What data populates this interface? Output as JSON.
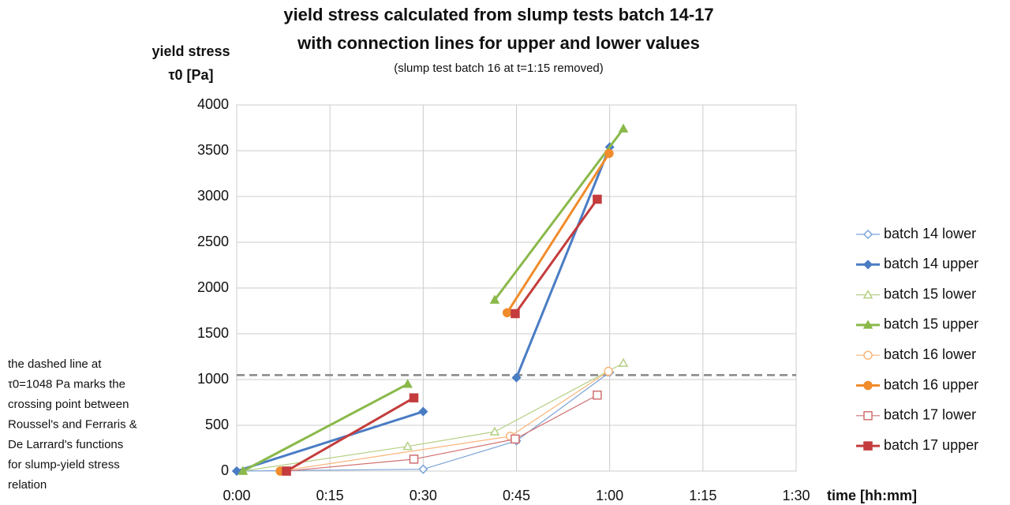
{
  "chart_data": {
    "type": "line",
    "title": [
      "yield stress calculated from slump tests batch 14-17",
      "with connection lines for upper and lower values"
    ],
    "subtitle": "(slump test batch 16 at t=1:15 removed)",
    "y_label": [
      "yield stress",
      "τ0 [Pa]"
    ],
    "x_label": "time [hh:mm]",
    "xlim": [
      0,
      90
    ],
    "xticks": [
      {
        "value": 0,
        "label": "0:00"
      },
      {
        "value": 15,
        "label": "0:15"
      },
      {
        "value": 30,
        "label": "0:30"
      },
      {
        "value": 45,
        "label": "0:45"
      },
      {
        "value": 60,
        "label": "1:00"
      },
      {
        "value": 75,
        "label": "1:15"
      },
      {
        "value": 90,
        "label": "1:30"
      }
    ],
    "ylim": [
      0,
      4000
    ],
    "yticks": [
      0,
      500,
      1000,
      1500,
      2000,
      2500,
      3000,
      3500,
      4000
    ],
    "grid": true,
    "legend": "right",
    "reference_line": {
      "value": 1048,
      "color": "#888888"
    },
    "annotation": [
      "the dashed line at",
      "τ0=1048 Pa marks the",
      "crossing point between",
      "Roussel's and Ferraris &",
      "De Larrard's functions",
      "for slump-yield stress",
      "relation"
    ],
    "series": [
      {
        "name": "batch 14 lower",
        "color": "#7ba3d6",
        "marker": "diamond",
        "filled": false,
        "width": 1.2,
        "x": [
          0,
          30,
          45,
          60
        ],
        "values": [
          0,
          20,
          330,
          1080
        ]
      },
      {
        "name": "batch 14 upper",
        "color": "#4a7cc4",
        "marker": "diamond",
        "filled": true,
        "width": 3,
        "x": [
          0,
          30,
          null,
          45,
          60
        ],
        "values": [
          0,
          650,
          null,
          1020,
          3540
        ]
      },
      {
        "name": "batch 15 lower",
        "color": "#b5cf84",
        "marker": "triangle",
        "filled": false,
        "width": 1.2,
        "x": [
          1,
          27.5,
          41.5,
          62.2
        ],
        "values": [
          0,
          270,
          430,
          1180
        ]
      },
      {
        "name": "batch 15 upper",
        "color": "#8ab94a",
        "marker": "triangle",
        "filled": true,
        "width": 3,
        "x": [
          1,
          27.5,
          null,
          41.5,
          62.2
        ],
        "values": [
          0,
          950,
          null,
          1870,
          3740
        ]
      },
      {
        "name": "batch 16 lower",
        "color": "#f9b57a",
        "marker": "circle",
        "filled": false,
        "width": 1.2,
        "x": [
          7,
          44,
          59.8
        ],
        "values": [
          0,
          380,
          1090
        ]
      },
      {
        "name": "batch 16 upper",
        "color": "#f08c2c",
        "marker": "circle",
        "filled": true,
        "width": 3,
        "x": [
          7,
          null,
          43.5,
          59.9
        ],
        "values": [
          0,
          null,
          1730,
          3470
        ]
      },
      {
        "name": "batch 17 lower",
        "color": "#d07070",
        "marker": "square",
        "filled": false,
        "width": 1.2,
        "x": [
          8,
          28.5,
          44.8,
          58
        ],
        "values": [
          0,
          130,
          350,
          830
        ]
      },
      {
        "name": "batch 17 upper",
        "color": "#c43c3c",
        "marker": "square",
        "filled": true,
        "width": 3,
        "x": [
          8,
          28.5,
          null,
          44.8,
          58
        ],
        "values": [
          0,
          800,
          null,
          1720,
          2970
        ]
      }
    ]
  }
}
